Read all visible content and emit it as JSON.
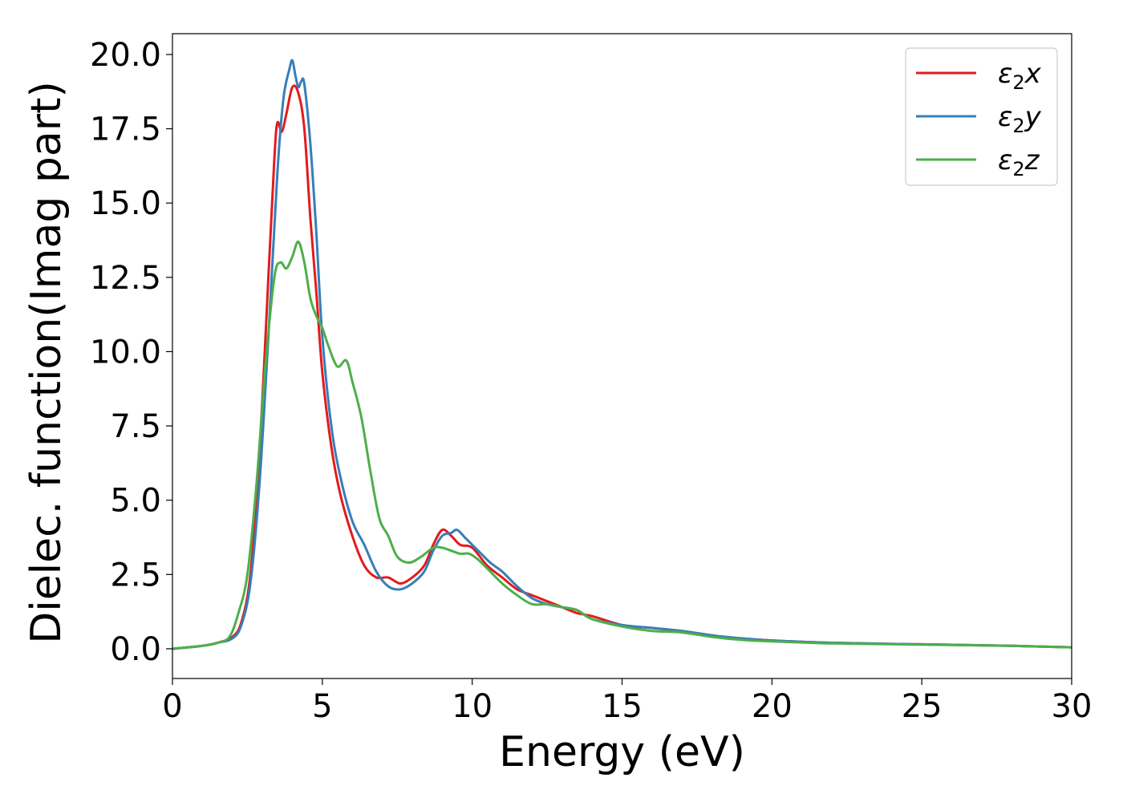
{
  "chart_data": {
    "type": "line",
    "title": "",
    "xlabel": "Energy (eV)",
    "ylabel": "Dielec. function(Imag part)",
    "xlim": [
      0,
      30
    ],
    "ylim": [
      -1.0,
      20.7
    ],
    "xticks": [
      0,
      5,
      10,
      15,
      20,
      25,
      30
    ],
    "xtick_labels": [
      "0",
      "5",
      "10",
      "15",
      "20",
      "25",
      "30"
    ],
    "yticks": [
      0.0,
      2.5,
      5.0,
      7.5,
      10.0,
      12.5,
      15.0,
      17.5,
      20.0
    ],
    "ytick_labels": [
      "0.0",
      "2.5",
      "5.0",
      "7.5",
      "10.0",
      "12.5",
      "15.0",
      "17.5",
      "20.0"
    ],
    "grid": false,
    "legend_position": "top-right",
    "series": [
      {
        "name": "ε2x",
        "legend_main": "ε",
        "legend_sub": "2",
        "legend_suffix": "x",
        "color": "#e41a1c",
        "x": [
          0,
          1,
          1.5,
          2.0,
          2.3,
          2.6,
          2.9,
          3.2,
          3.4,
          3.5,
          3.65,
          3.8,
          4.0,
          4.2,
          4.4,
          4.6,
          4.8,
          5.0,
          5.3,
          5.6,
          6.0,
          6.4,
          6.8,
          7.2,
          7.6,
          8.0,
          8.4,
          8.7,
          9.0,
          9.3,
          9.6,
          10.0,
          10.5,
          11.0,
          11.5,
          12.0,
          12.5,
          13.0,
          13.5,
          14.0,
          15.0,
          16.0,
          17.0,
          18.0,
          19.0,
          20.0,
          22.0,
          25.0,
          28.0,
          30.0
        ],
        "y": [
          0.0,
          0.1,
          0.2,
          0.4,
          0.9,
          2.5,
          6.5,
          12.5,
          16.5,
          17.7,
          17.4,
          18.0,
          18.9,
          18.7,
          17.5,
          14.5,
          12.0,
          9.3,
          6.8,
          5.2,
          3.8,
          2.8,
          2.4,
          2.4,
          2.2,
          2.4,
          2.8,
          3.5,
          4.0,
          3.8,
          3.5,
          3.4,
          2.8,
          2.4,
          2.0,
          1.8,
          1.6,
          1.4,
          1.2,
          1.1,
          0.8,
          0.7,
          0.6,
          0.45,
          0.35,
          0.28,
          0.2,
          0.15,
          0.1,
          0.05
        ]
      },
      {
        "name": "ε2y",
        "legend_main": "ε",
        "legend_sub": "2",
        "legend_suffix": "y",
        "color": "#377eb8",
        "x": [
          0,
          1,
          1.5,
          2.0,
          2.3,
          2.6,
          2.9,
          3.2,
          3.5,
          3.7,
          3.9,
          4.0,
          4.1,
          4.2,
          4.3,
          4.4,
          4.6,
          4.8,
          5.0,
          5.3,
          5.6,
          6.0,
          6.4,
          6.8,
          7.2,
          7.6,
          8.0,
          8.4,
          8.7,
          9.0,
          9.3,
          9.5,
          9.8,
          10.2,
          10.6,
          11.0,
          11.5,
          12.0,
          12.5,
          13.0,
          13.5,
          14.0,
          15.0,
          16.0,
          17.0,
          18.0,
          19.0,
          20.0,
          22.0,
          25.0,
          28.0,
          30.0
        ],
        "y": [
          0.0,
          0.1,
          0.2,
          0.35,
          0.8,
          2.2,
          5.5,
          10.5,
          16.0,
          18.5,
          19.5,
          19.8,
          19.3,
          18.9,
          19.1,
          19.0,
          17.0,
          14.0,
          10.5,
          7.5,
          5.8,
          4.3,
          3.5,
          2.6,
          2.1,
          2.0,
          2.2,
          2.6,
          3.3,
          3.8,
          3.9,
          4.0,
          3.7,
          3.3,
          2.9,
          2.6,
          2.1,
          1.7,
          1.5,
          1.4,
          1.3,
          1.0,
          0.8,
          0.7,
          0.6,
          0.45,
          0.35,
          0.28,
          0.2,
          0.15,
          0.1,
          0.05
        ]
      },
      {
        "name": "ε2z",
        "legend_main": "ε",
        "legend_sub": "2",
        "legend_suffix": "z",
        "color": "#4daf4a",
        "x": [
          0,
          1,
          1.5,
          1.9,
          2.2,
          2.5,
          2.8,
          3.1,
          3.4,
          3.6,
          3.8,
          4.0,
          4.2,
          4.4,
          4.6,
          4.8,
          5.0,
          5.2,
          5.5,
          5.8,
          6.0,
          6.3,
          6.6,
          6.9,
          7.2,
          7.5,
          7.9,
          8.3,
          8.7,
          9.0,
          9.3,
          9.6,
          9.9,
          10.2,
          10.6,
          11.0,
          11.5,
          12.0,
          12.5,
          13.0,
          13.5,
          14.0,
          15.0,
          16.0,
          17.0,
          18.0,
          19.0,
          20.0,
          22.0,
          25.0,
          28.0,
          30.0
        ],
        "y": [
          0.0,
          0.1,
          0.2,
          0.4,
          1.2,
          2.5,
          5.5,
          9.5,
          12.5,
          13.0,
          12.8,
          13.2,
          13.7,
          13.0,
          11.8,
          11.2,
          10.8,
          10.2,
          9.5,
          9.7,
          9.0,
          7.8,
          6.0,
          4.4,
          3.8,
          3.1,
          2.9,
          3.1,
          3.4,
          3.4,
          3.3,
          3.2,
          3.2,
          3.0,
          2.6,
          2.2,
          1.8,
          1.5,
          1.5,
          1.4,
          1.3,
          1.0,
          0.75,
          0.6,
          0.55,
          0.4,
          0.3,
          0.25,
          0.18,
          0.14,
          0.1,
          0.05
        ]
      }
    ]
  }
}
